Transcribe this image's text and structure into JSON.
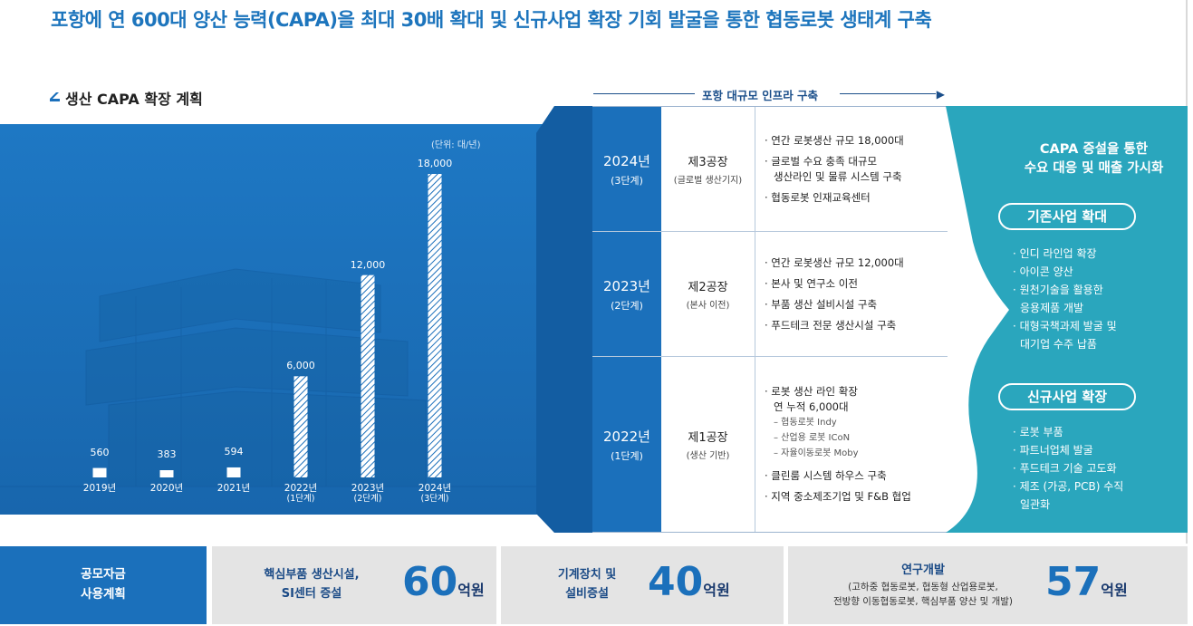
{
  "headline": "포항에 연 600대 양산 능력(CAPA)을 최대 30배 확대 및 신규사업 확장 기회 발굴을 통한 협동로봇 생태계 구축",
  "section_title": "생산 CAPA 확장 계획",
  "chart_data": {
    "type": "bar",
    "unit": "(단위: 대/년)",
    "categories": [
      "2019년",
      "2020년",
      "2021년",
      "2022년",
      "2023년",
      "2024년"
    ],
    "category_subs": [
      "",
      "",
      "",
      "(1단계)",
      "(2단계)",
      "(3단계)"
    ],
    "values": [
      560,
      383,
      594,
      6000,
      12000,
      18000
    ],
    "value_labels": [
      "560",
      "383",
      "594",
      "6,000",
      "12,000",
      "18,000"
    ],
    "hatched": [
      false,
      false,
      false,
      true,
      true,
      true
    ],
    "ylim": [
      0,
      18000
    ]
  },
  "infra_header": "포항 대규모 인프라 구축",
  "phases": [
    {
      "year": "2024년",
      "stage": "(3단계)",
      "factory": "제3공장",
      "factory_sub": "(글로벌 생산기지)",
      "items": [
        {
          "text": "· 연간 로봇생산 규모 18,000대",
          "cont": ""
        },
        {
          "text": "· 글로벌 수요 충족 대규모",
          "cont": "생산라인 및 물류 시스템 구축"
        },
        {
          "text": "· 협동로봇 인재교육센터",
          "cont": ""
        }
      ]
    },
    {
      "year": "2023년",
      "stage": "(2단계)",
      "factory": "제2공장",
      "factory_sub": "(본사 이전)",
      "items": [
        {
          "text": "· 연간 로봇생산 규모 12,000대",
          "cont": ""
        },
        {
          "text": "· 본사 및 연구소 이전",
          "cont": ""
        },
        {
          "text": "· 부품 생산 설비시설 구축",
          "cont": ""
        },
        {
          "text": "· 푸드테크 전문 생산시설 구축",
          "cont": ""
        }
      ]
    },
    {
      "year": "2022년",
      "stage": "(1단계)",
      "factory": "제1공장",
      "factory_sub": "(생산 기반)",
      "items": [
        {
          "text": "· 로봇 생산 라인 확장",
          "cont": "연 누적 6,000대"
        }
      ],
      "subs": [
        "– 협동로봇 Indy",
        "– 산업용 로봇 ICoN",
        "– 자율이동로봇 Moby"
      ],
      "items_after": [
        {
          "text": "· 클린룸 시스템 하우스 구축",
          "cont": ""
        },
        {
          "text": "· 지역 중소제조기업 및 F&B 협업",
          "cont": ""
        }
      ]
    }
  ],
  "visualization": {
    "title_line1": "CAPA 증설을 통한",
    "title_line2": "수요 대응 및 매출 가시화",
    "existing": {
      "label": "기존사업 확대",
      "items": [
        {
          "text": "· 인디 라인업 확장",
          "cont": ""
        },
        {
          "text": "· 아이콘 양산",
          "cont": ""
        },
        {
          "text": "· 원천기술을 활용한",
          "cont": "응용제품 개발"
        },
        {
          "text": "· 대형국책과제 발굴 및",
          "cont": "대기업 수주 납품"
        }
      ]
    },
    "new": {
      "label": "신규사업 확장",
      "items": [
        {
          "text": "· 로봇 부품",
          "cont": ""
        },
        {
          "text": "· 파트너업체 발굴",
          "cont": ""
        },
        {
          "text": "· 푸드테크 기술 고도화",
          "cont": ""
        },
        {
          "text": "· 제조 (가공, PCB) 수직",
          "cont": "일관화"
        }
      ]
    }
  },
  "funding": {
    "title_line1": "공모자금",
    "title_line2": "사용계획",
    "items": [
      {
        "line1": "핵심부품 생산시설,",
        "line2": "SI센터 증설",
        "amount": "60",
        "unit": "억원"
      },
      {
        "line1": "기계장치 및",
        "line2": "설비증설",
        "amount": "40",
        "unit": "억원"
      },
      {
        "line1": "연구개발",
        "detail1": "(고하중 협동로봇, 협동형 산업용로봇,",
        "detail2": "전방향 이동협동로봇, 핵심부품 양산 및 개발)",
        "amount": "57",
        "unit": "억원"
      }
    ]
  },
  "colors": {
    "primary": "#1b70bb",
    "navy": "#1a4e8a",
    "teal": "#2aa6bd",
    "gray_panel": "#e4e4e4"
  }
}
